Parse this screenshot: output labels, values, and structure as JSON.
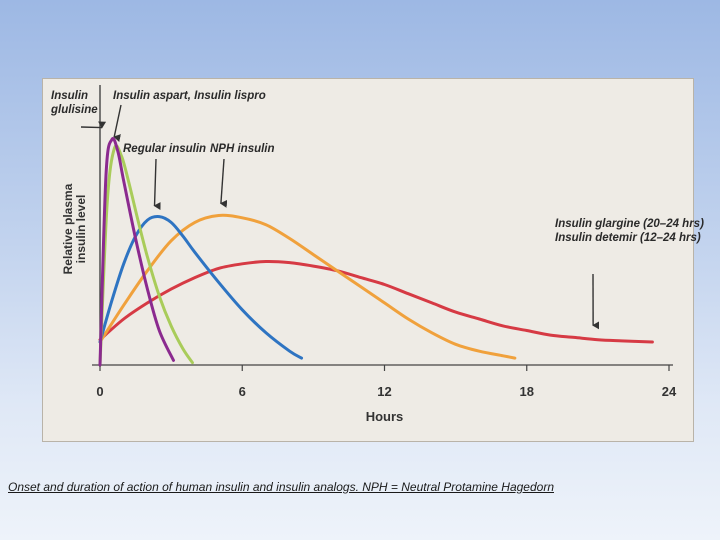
{
  "slide": {
    "caption": "Onset and duration of action of human insulin and insulin analogs. NPH = Neutral Protamine Hagedorn",
    "background_top": "#9db8e4",
    "background_bottom": "#eef3fa",
    "panel_color": "#eeebe5"
  },
  "chart_data": {
    "type": "line",
    "title": "",
    "xlabel": "Hours",
    "ylabel": [
      "Relative plasma",
      "insulin level"
    ],
    "xlim": [
      0,
      24
    ],
    "ylim": [
      0,
      1
    ],
    "xticks": [
      "0",
      "6",
      "12",
      "18",
      "24"
    ],
    "grid": false,
    "series": [
      {
        "name": "Insulin glulisine",
        "color": "#8b2a8f",
        "x": [
          0,
          0.25,
          0.5,
          0.75,
          1,
          1.5,
          2,
          2.5,
          3.1
        ],
        "y": [
          0,
          0.82,
          0.98,
          0.93,
          0.8,
          0.55,
          0.33,
          0.15,
          0.02
        ]
      },
      {
        "name": "Insulin aspart, Insulin lispro",
        "color": "#a9cc5a",
        "x": [
          0,
          0.3,
          0.6,
          0.9,
          1.2,
          1.6,
          2,
          2.5,
          3,
          3.5,
          3.9
        ],
        "y": [
          0,
          0.7,
          0.94,
          0.91,
          0.8,
          0.63,
          0.47,
          0.3,
          0.17,
          0.07,
          0.01
        ]
      },
      {
        "name": "Regular insulin",
        "color": "#2e74c2",
        "x": [
          0,
          0.5,
          1,
          1.5,
          2,
          2.5,
          3,
          3.5,
          4,
          5,
          6,
          7,
          8,
          8.5
        ],
        "y": [
          0.1,
          0.28,
          0.44,
          0.56,
          0.63,
          0.645,
          0.62,
          0.56,
          0.49,
          0.36,
          0.24,
          0.14,
          0.06,
          0.03
        ]
      },
      {
        "name": "NPH insulin",
        "color": "#f0a13c",
        "x": [
          0,
          1,
          2,
          3,
          4,
          5,
          6,
          7,
          8,
          9,
          10,
          11,
          12,
          13,
          14,
          15,
          16,
          17,
          17.5
        ],
        "y": [
          0.1,
          0.26,
          0.41,
          0.54,
          0.62,
          0.65,
          0.64,
          0.61,
          0.55,
          0.48,
          0.41,
          0.34,
          0.27,
          0.2,
          0.14,
          0.09,
          0.06,
          0.04,
          0.03
        ]
      },
      {
        "name": "Insulin glargine (20–24 hrs) / Insulin detemir (12–24 hrs)",
        "color": "#d63a44",
        "x": [
          0,
          1,
          2,
          3,
          4,
          5,
          6,
          7,
          8,
          9,
          10,
          11,
          12,
          13,
          14,
          15,
          16,
          17,
          18,
          19,
          20,
          21,
          22,
          23.3
        ],
        "y": [
          0.11,
          0.2,
          0.27,
          0.33,
          0.38,
          0.42,
          0.44,
          0.45,
          0.445,
          0.43,
          0.41,
          0.38,
          0.35,
          0.31,
          0.27,
          0.23,
          0.2,
          0.17,
          0.15,
          0.13,
          0.12,
          0.11,
          0.105,
          0.1
        ]
      }
    ],
    "annotations": [
      {
        "lines": [
          "Insulin",
          "glulisine"
        ],
        "arrow_x": 0.25,
        "arrow_y": 0.98
      },
      {
        "lines": [
          "Insulin aspart, Insulin lispro"
        ],
        "arrow_x": 0.6,
        "arrow_y": 0.94
      },
      {
        "lines": [
          "Regular insulin"
        ],
        "arrow_x": 2.3,
        "arrow_y": 0.64
      },
      {
        "lines": [
          "NPH insulin"
        ],
        "arrow_x": 5.1,
        "arrow_y": 0.65
      },
      {
        "lines": [
          "Insulin glargine (20–24 hrs)",
          "Insulin detemir (12–24 hrs)"
        ],
        "arrow_x": 20.8,
        "arrow_y": 0.12
      }
    ]
  }
}
